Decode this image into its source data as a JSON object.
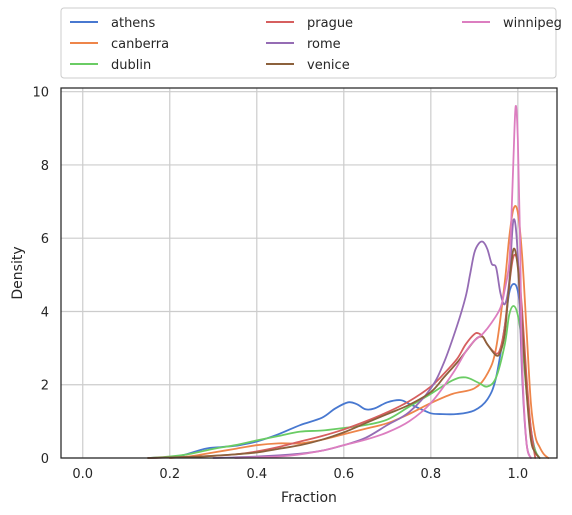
{
  "chart_data": {
    "type": "line",
    "title": "",
    "xlabel": "Fraction",
    "ylabel": "Density",
    "xlim": [
      -0.05,
      1.09
    ],
    "ylim": [
      0,
      10.1
    ],
    "xticks": [
      "0.0",
      "0.2",
      "0.4",
      "0.6",
      "0.8",
      "1.0"
    ],
    "yticks": [
      "0",
      "2",
      "4",
      "6",
      "8",
      "10"
    ],
    "grid": true,
    "legend_position": "top, above plot, 3 columns",
    "series": [
      {
        "name": "athens",
        "color": "#4878d0",
        "x": [
          0.15,
          0.22,
          0.28,
          0.32,
          0.36,
          0.4,
          0.45,
          0.5,
          0.55,
          0.58,
          0.61,
          0.63,
          0.65,
          0.67,
          0.7,
          0.73,
          0.75,
          0.78,
          0.8,
          0.82,
          0.86,
          0.9,
          0.93,
          0.95,
          0.97,
          0.98,
          0.99,
          1.0,
          1.01,
          1.02,
          1.03,
          1.04,
          1.05
        ],
        "values": [
          0,
          0.05,
          0.25,
          0.3,
          0.35,
          0.45,
          0.65,
          0.9,
          1.1,
          1.35,
          1.52,
          1.47,
          1.33,
          1.35,
          1.52,
          1.58,
          1.48,
          1.32,
          1.22,
          1.2,
          1.2,
          1.3,
          1.6,
          2.2,
          3.6,
          4.5,
          4.75,
          4.55,
          3.6,
          2.0,
          0.8,
          0.2,
          0
        ]
      },
      {
        "name": "canberra",
        "color": "#ee854a",
        "x": [
          0.2,
          0.25,
          0.3,
          0.35,
          0.4,
          0.45,
          0.5,
          0.55,
          0.6,
          0.65,
          0.7,
          0.75,
          0.8,
          0.85,
          0.9,
          0.93,
          0.95,
          0.97,
          0.98,
          0.99,
          1.0,
          1.01,
          1.02,
          1.03,
          1.04,
          1.05,
          1.06,
          1.07
        ],
        "values": [
          0,
          0.05,
          0.15,
          0.25,
          0.35,
          0.4,
          0.4,
          0.5,
          0.65,
          0.8,
          0.95,
          1.2,
          1.5,
          1.75,
          1.9,
          2.3,
          3.0,
          4.8,
          6.0,
          6.8,
          6.7,
          5.5,
          3.5,
          1.5,
          0.6,
          0.3,
          0.1,
          0
        ]
      },
      {
        "name": "dublin",
        "color": "#6acc64",
        "x": [
          0.15,
          0.2,
          0.25,
          0.3,
          0.35,
          0.4,
          0.45,
          0.5,
          0.55,
          0.6,
          0.65,
          0.7,
          0.75,
          0.8,
          0.85,
          0.88,
          0.91,
          0.93,
          0.95,
          0.97,
          0.98,
          0.99,
          1.0,
          1.01,
          1.02,
          1.03,
          1.04,
          1.05
        ],
        "values": [
          0,
          0.04,
          0.12,
          0.25,
          0.35,
          0.48,
          0.6,
          0.72,
          0.75,
          0.82,
          0.9,
          1.05,
          1.4,
          1.75,
          2.12,
          2.2,
          2.05,
          1.95,
          2.2,
          3.1,
          3.9,
          4.15,
          3.9,
          3.1,
          1.8,
          0.7,
          0.2,
          0
        ]
      },
      {
        "name": "prague",
        "color": "#d65f5f",
        "x": [
          0.15,
          0.25,
          0.35,
          0.4,
          0.45,
          0.5,
          0.55,
          0.6,
          0.65,
          0.7,
          0.75,
          0.8,
          0.83,
          0.86,
          0.88,
          0.9,
          0.91,
          0.92,
          0.93,
          0.95,
          0.96,
          0.97,
          0.98,
          0.99,
          1.0,
          1.01,
          1.02,
          1.03,
          1.04
        ],
        "values": [
          0,
          0.03,
          0.1,
          0.18,
          0.3,
          0.45,
          0.6,
          0.78,
          1.0,
          1.25,
          1.55,
          1.95,
          2.3,
          2.7,
          3.1,
          3.38,
          3.4,
          3.3,
          3.1,
          2.85,
          3.0,
          3.6,
          4.7,
          5.5,
          5.3,
          4.0,
          2.2,
          0.8,
          0
        ]
      },
      {
        "name": "rome",
        "color": "#956cb4",
        "x": [
          0.3,
          0.4,
          0.5,
          0.55,
          0.6,
          0.65,
          0.7,
          0.75,
          0.8,
          0.83,
          0.86,
          0.88,
          0.89,
          0.9,
          0.91,
          0.92,
          0.93,
          0.94,
          0.95,
          0.96,
          0.97,
          0.98,
          0.99,
          1.0,
          1.01,
          1.02,
          1.03
        ],
        "values": [
          0,
          0.04,
          0.12,
          0.2,
          0.35,
          0.55,
          0.9,
          1.25,
          1.9,
          2.6,
          3.6,
          4.4,
          5.0,
          5.6,
          5.85,
          5.9,
          5.7,
          5.3,
          5.2,
          4.5,
          4.2,
          4.8,
          6.5,
          5.5,
          2.2,
          0.4,
          0
        ]
      },
      {
        "name": "venice",
        "color": "#8c613c",
        "x": [
          0.15,
          0.25,
          0.3,
          0.35,
          0.4,
          0.45,
          0.5,
          0.55,
          0.6,
          0.65,
          0.7,
          0.75,
          0.8,
          0.83,
          0.86,
          0.88,
          0.9,
          0.91,
          0.92,
          0.93,
          0.95,
          0.96,
          0.97,
          0.98,
          0.99,
          1.0,
          1.01,
          1.02,
          1.03,
          1.04,
          1.05
        ],
        "values": [
          0,
          0.03,
          0.06,
          0.1,
          0.15,
          0.25,
          0.35,
          0.5,
          0.7,
          0.95,
          1.2,
          1.45,
          1.8,
          2.2,
          2.6,
          2.9,
          3.2,
          3.3,
          3.3,
          3.1,
          2.8,
          2.9,
          3.4,
          4.7,
          5.7,
          5.2,
          3.6,
          1.8,
          0.5,
          0.15,
          0
        ]
      },
      {
        "name": "winnipeg",
        "color": "#dc7ec0",
        "x": [
          0.35,
          0.45,
          0.5,
          0.55,
          0.6,
          0.65,
          0.7,
          0.75,
          0.8,
          0.85,
          0.88,
          0.9,
          0.92,
          0.94,
          0.96,
          0.97,
          0.98,
          0.985,
          0.99,
          0.995,
          1.0,
          1.005,
          1.01,
          1.02,
          1.03
        ],
        "values": [
          0,
          0.04,
          0.1,
          0.2,
          0.35,
          0.5,
          0.7,
          1.0,
          1.5,
          2.3,
          2.9,
          3.2,
          3.4,
          3.7,
          4.1,
          4.6,
          5.3,
          6.5,
          8.2,
          9.6,
          8.7,
          6.0,
          2.6,
          0.4,
          0
        ]
      }
    ]
  }
}
